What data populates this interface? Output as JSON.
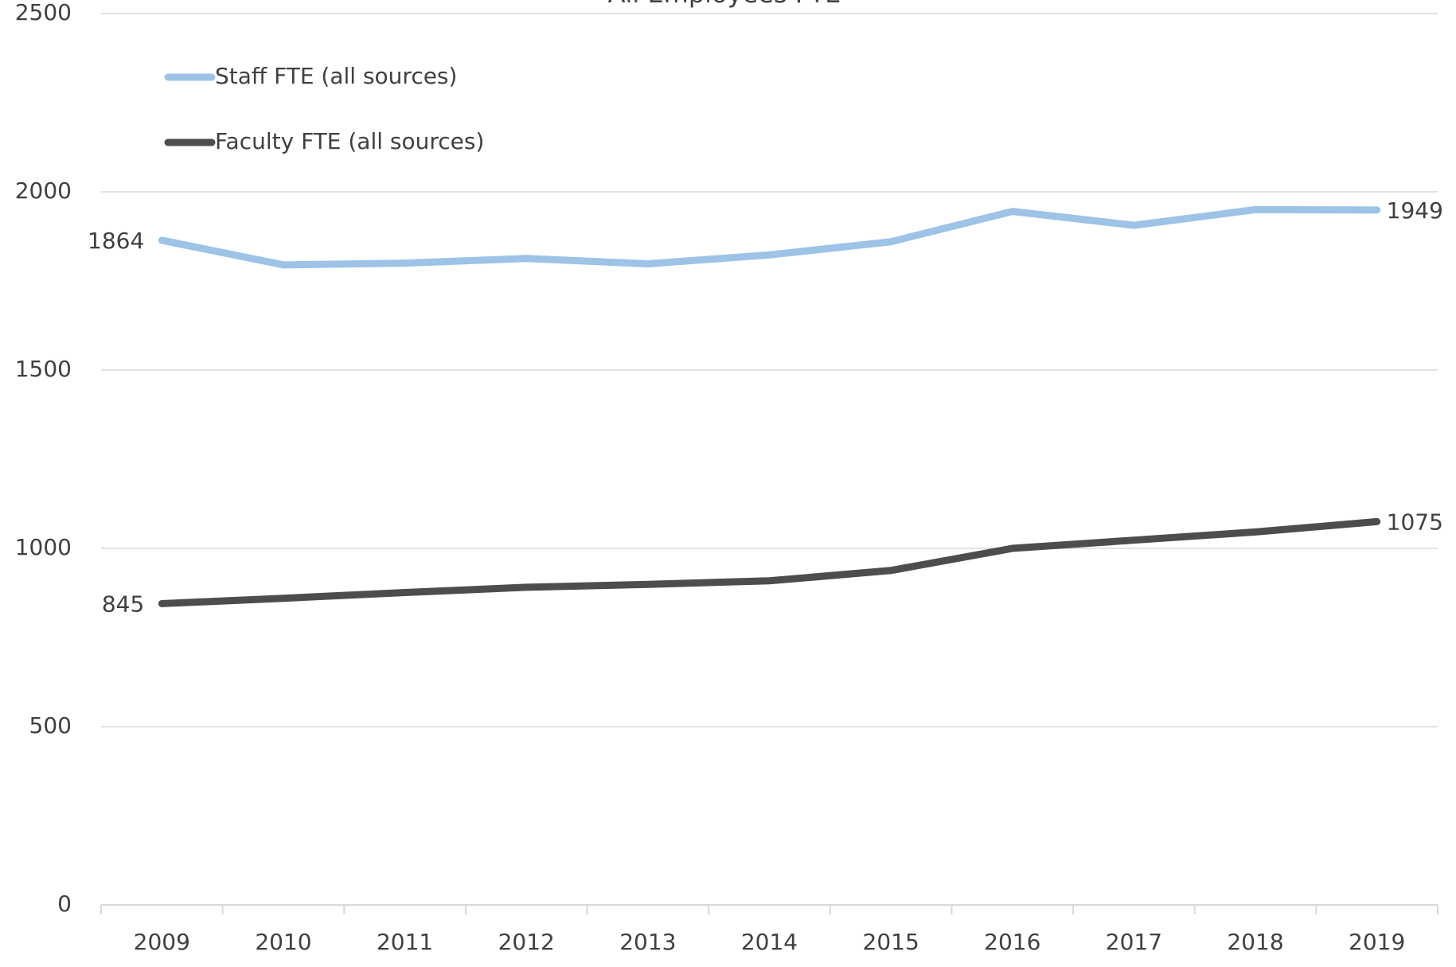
{
  "chart_data": {
    "type": "line",
    "title": "All Employees FTE",
    "categories": [
      "2009",
      "2010",
      "2011",
      "2012",
      "2013",
      "2014",
      "2015",
      "2016",
      "2017",
      "2018",
      "2019"
    ],
    "series": [
      {
        "name": "Staff FTE (all sources)",
        "color": "#9dc3e6",
        "values": [
          1864,
          1795,
          1800,
          1813,
          1798,
          1823,
          1860,
          1945,
          1906,
          1950,
          1949
        ]
      },
      {
        "name": "Faculty FTE (all sources)",
        "color": "#4d4d4d",
        "values": [
          845,
          860,
          876,
          891,
          899,
          909,
          938,
          1000,
          1023,
          1046,
          1075
        ]
      }
    ],
    "ylim": [
      0,
      2500
    ],
    "yticks": [
      0,
      500,
      1000,
      1500,
      2000,
      2500
    ],
    "grid": true,
    "legend": "upper left",
    "data_labels": "ends"
  }
}
